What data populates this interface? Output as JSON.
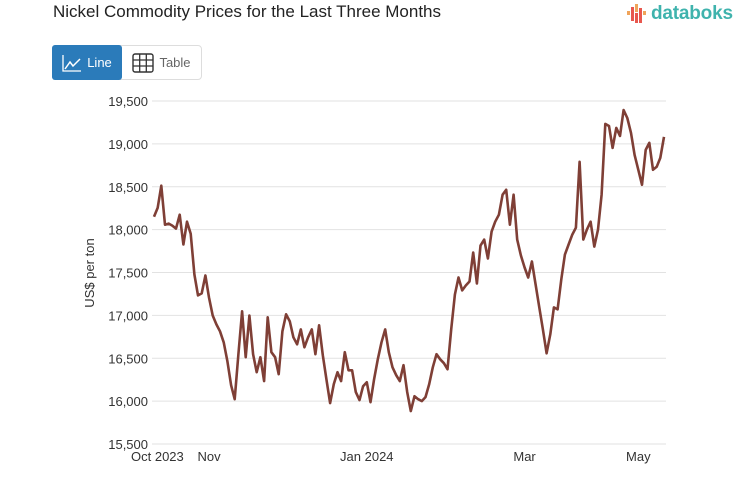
{
  "header": {
    "title": "Nickel Commodity Prices for the Last Three Months",
    "logo_text": "databoks"
  },
  "toggle": {
    "line_label": "Line",
    "table_label": "Table",
    "active": "Line"
  },
  "colors": {
    "line": "#7f3f36",
    "accent": "#2b7bba",
    "logo": "#3fb3ad",
    "grid": "#e2e2e2"
  },
  "chart_data": {
    "type": "line",
    "title": "Nickel Commodity Prices for the Last Three Months",
    "xlabel": "",
    "ylabel": "US$ per ton",
    "ylim": [
      15500,
      19500
    ],
    "yticks": [
      15500,
      16000,
      16500,
      17000,
      17500,
      18000,
      18500,
      19000,
      19500
    ],
    "ytick_labels": [
      "15,500",
      "16,000",
      "16,500",
      "17,000",
      "17,500",
      "18,000",
      "18,500",
      "19,000",
      "19,500"
    ],
    "xtick_labels": [
      {
        "label": "Oct 2023",
        "index": 0
      },
      {
        "label": "Nov",
        "index": 15
      },
      {
        "label": "Jan 2024",
        "index": 58
      },
      {
        "label": "Mar",
        "index": 101
      },
      {
        "label": "May",
        "index": 132
      }
    ],
    "grid": true,
    "series": [
      {
        "name": "Nickel",
        "values": [
          18151,
          18256,
          18512,
          18058,
          18070,
          18047,
          18012,
          18174,
          17826,
          18093,
          17953,
          17477,
          17233,
          17256,
          17465,
          17209,
          16999,
          16895,
          16814,
          16686,
          16465,
          16186,
          16023,
          16547,
          17047,
          16512,
          16999,
          16547,
          16337,
          16512,
          16233,
          16977,
          16570,
          16512,
          16314,
          16814,
          17012,
          16930,
          16744,
          16663,
          16837,
          16628,
          16744,
          16837,
          16547,
          16884,
          16535,
          16256,
          15977,
          16198,
          16337,
          16233,
          16570,
          16360,
          16360,
          16105,
          16012,
          16174,
          16221,
          15988,
          16256,
          16488,
          16686,
          16837,
          16570,
          16395,
          16302,
          16233,
          16419,
          16105,
          15884,
          16058,
          16023,
          16000,
          16047,
          16198,
          16395,
          16547,
          16488,
          16442,
          16372,
          16837,
          17244,
          17442,
          17291,
          17349,
          17395,
          17733,
          17372,
          17814,
          17884,
          17663,
          17977,
          18093,
          18174,
          18407,
          18465,
          18058,
          18407,
          17884,
          17698,
          17558,
          17442,
          17628,
          17360,
          17093,
          16837,
          16558,
          16779,
          17093,
          17070,
          17419,
          17709,
          17826,
          17942,
          18023,
          18791,
          17884,
          18000,
          18093,
          17802,
          18000,
          18407,
          19233,
          19209,
          18953,
          19186,
          19093,
          19395,
          19302,
          19128,
          18872,
          18698,
          18523,
          18930,
          19012,
          18698,
          18733,
          18837,
          19081
        ]
      }
    ]
  }
}
